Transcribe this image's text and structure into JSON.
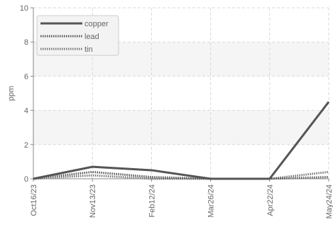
{
  "chart_data": {
    "type": "line",
    "title": "",
    "xlabel": "",
    "ylabel": "ppm",
    "ylim": [
      0,
      10
    ],
    "yticks": [
      0,
      2,
      4,
      6,
      8,
      10
    ],
    "x": [
      "Oct16/23",
      "Nov13/23",
      "Feb12/24",
      "Mar26/24",
      "Apr22/24",
      "May24/24"
    ],
    "grid": true,
    "legend_position": "top-left",
    "series": [
      {
        "name": "copper",
        "values": [
          0,
          0.7,
          0.5,
          0,
          0,
          4.5
        ],
        "color": "#555555",
        "style": "solid"
      },
      {
        "name": "lead",
        "values": [
          0,
          0.4,
          0.1,
          0,
          0,
          0.1
        ],
        "color": "#555555",
        "style": "dotted"
      },
      {
        "name": "tin",
        "values": [
          0,
          0.2,
          0,
          0,
          0,
          0.4
        ],
        "color": "#777777",
        "style": "dotted"
      }
    ]
  }
}
